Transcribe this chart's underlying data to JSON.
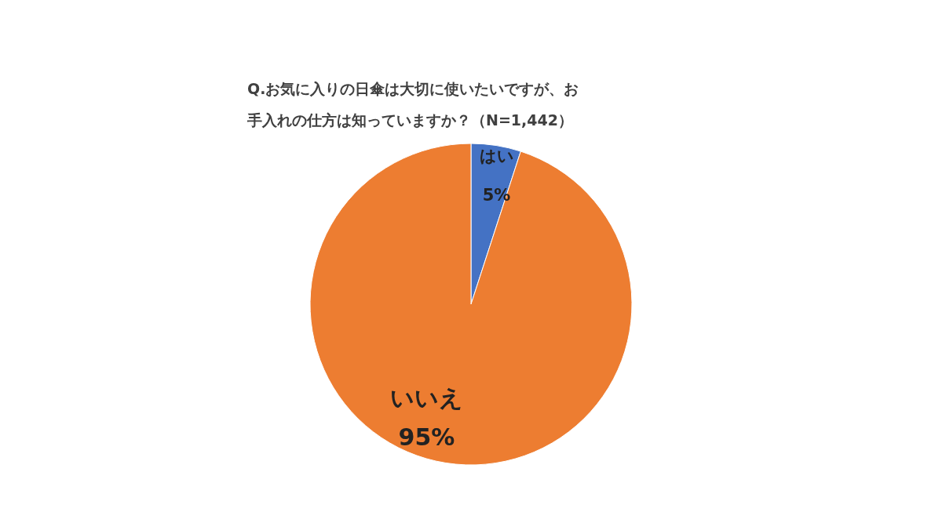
{
  "chart_data": {
    "type": "pie",
    "title": "Q.お気に入りの日傘は大切に使いたいですが、お手入れの仕方は知っていますか？（N=1,442）",
    "categories": [
      "はい",
      "いいえ"
    ],
    "values": [
      5,
      95
    ],
    "colors": [
      "#4472c4",
      "#ed7d31"
    ],
    "value_labels": [
      "5%",
      "95%"
    ],
    "legend": false
  }
}
